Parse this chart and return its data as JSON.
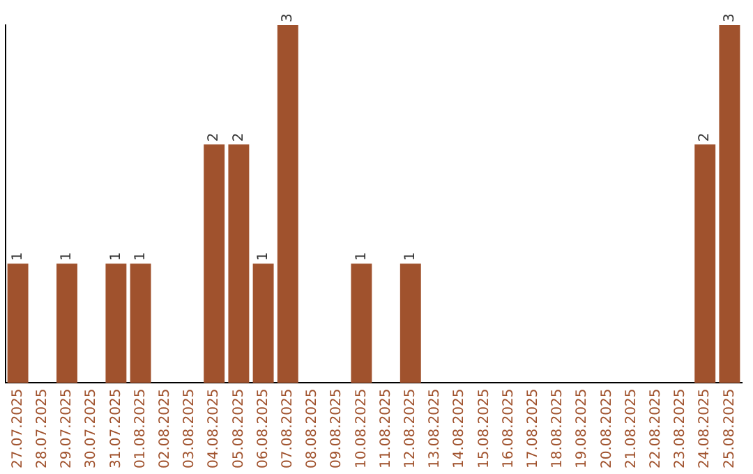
{
  "chart_data": {
    "type": "bar",
    "categories": [
      "27.07.2025",
      "28.07.2025",
      "29.07.2025",
      "30.07.2025",
      "31.07.2025",
      "01.08.2025",
      "02.08.2025",
      "03.08.2025",
      "04.08.2025",
      "05.08.2025",
      "06.08.2025",
      "07.08.2025",
      "08.08.2025",
      "09.08.2025",
      "10.08.2025",
      "11.08.2025",
      "12.08.2025",
      "13.08.2025",
      "14.08.2025",
      "15.08.2025",
      "16.08.2025",
      "17.08.2025",
      "18.08.2025",
      "19.08.2025",
      "20.08.2025",
      "21.08.2025",
      "22.08.2025",
      "23.08.2025",
      "24.08.2025",
      "25.08.2025"
    ],
    "values": [
      1,
      0,
      1,
      0,
      1,
      1,
      0,
      0,
      2,
      2,
      1,
      3,
      0,
      0,
      1,
      0,
      1,
      0,
      0,
      0,
      0,
      0,
      0,
      0,
      0,
      0,
      0,
      0,
      2,
      3
    ],
    "value_labels": [
      "1",
      null,
      "1",
      null,
      "1",
      "1",
      null,
      null,
      "2",
      "2",
      "1",
      "3",
      null,
      null,
      "1",
      null,
      "1",
      null,
      null,
      null,
      null,
      null,
      null,
      null,
      null,
      null,
      null,
      null,
      "2",
      "3"
    ],
    "color": "#a0522d",
    "grid": false,
    "legend": false
  }
}
